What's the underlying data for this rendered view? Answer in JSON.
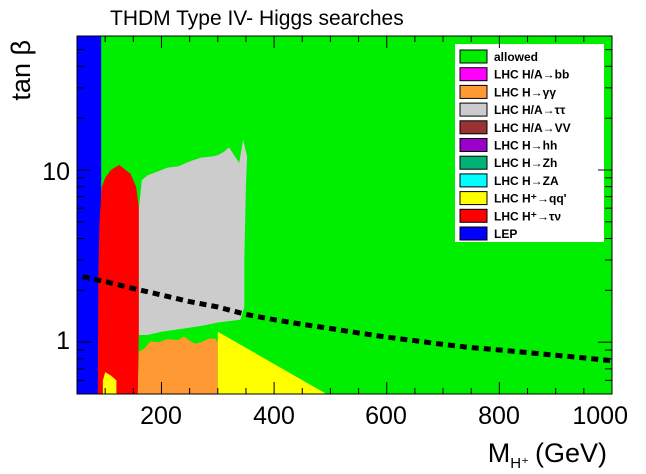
{
  "chart_data": {
    "type": "area",
    "title": "THDM Type IV- Higgs searches",
    "xlabel": "M",
    "xlabel_sub": "H⁺",
    "xlabel_unit": "(GeV)",
    "ylabel": "tan β",
    "x_scale": "linear",
    "y_scale": "log",
    "xlim": [
      50,
      1000
    ],
    "ylim": [
      0.5,
      60
    ],
    "x_ticks": [
      200,
      400,
      600,
      800,
      1000
    ],
    "x_tick_labels": [
      "200",
      "400",
      "600",
      "800",
      "1000"
    ],
    "y_ticks": [
      1,
      10
    ],
    "y_tick_labels": [
      "1",
      "10"
    ],
    "grid": false,
    "legend_position": "top-right",
    "legend": [
      {
        "key": "allowed",
        "label": "allowed",
        "color": "#00ee00"
      },
      {
        "key": "hbb",
        "label": "LHC H/A→bb",
        "color": "#ff00ff"
      },
      {
        "key": "hgg",
        "label": "LHC H→γγ",
        "color": "#ff9933"
      },
      {
        "key": "htt",
        "label": "LHC H/A→ττ",
        "color": "#cccccc"
      },
      {
        "key": "hvv",
        "label": "LHC H/A→VV",
        "color": "#993333"
      },
      {
        "key": "hhh",
        "label": "LHC H→hh",
        "color": "#9900cc"
      },
      {
        "key": "hzh",
        "label": "LHC H→Zh",
        "color": "#00b377"
      },
      {
        "key": "hza",
        "label": "LHC H→ZA",
        "color": "#00ffff"
      },
      {
        "key": "hqq",
        "label": "LHC H⁺→qq'",
        "color": "#ffff00"
      },
      {
        "key": "htn",
        "label": "LHC H⁺→τν",
        "color": "#ff0000"
      },
      {
        "key": "lep",
        "label": "LEP",
        "color": "#0000ff"
      }
    ],
    "regions": [
      {
        "key": "lep",
        "points": [
          [
            50,
            0.5
          ],
          [
            93,
            0.5
          ],
          [
            93,
            60
          ],
          [
            50,
            60
          ]
        ]
      },
      {
        "key": "htn",
        "points": [
          [
            87,
            0.5
          ],
          [
            158,
            0.5
          ],
          [
            160,
            1.2
          ],
          [
            160,
            6
          ],
          [
            155,
            8
          ],
          [
            145,
            9.5
          ],
          [
            125,
            10.7
          ],
          [
            110,
            10
          ],
          [
            100,
            9
          ],
          [
            94,
            8
          ],
          [
            90,
            5
          ],
          [
            88,
            2.5
          ]
        ]
      },
      {
        "key": "htt",
        "points": [
          [
            160,
            1.1
          ],
          [
            175,
            1.1
          ],
          [
            200,
            1.15
          ],
          [
            240,
            1.2
          ],
          [
            275,
            1.25
          ],
          [
            300,
            1.3
          ],
          [
            340,
            1.35
          ],
          [
            347,
            1.6
          ],
          [
            347,
            3
          ],
          [
            350,
            8
          ],
          [
            352,
            12
          ],
          [
            345,
            15
          ],
          [
            338,
            11
          ],
          [
            320,
            13.5
          ],
          [
            310,
            12.7
          ],
          [
            300,
            12.2
          ],
          [
            290,
            12
          ],
          [
            270,
            11.8
          ],
          [
            250,
            11.2
          ],
          [
            230,
            10.5
          ],
          [
            210,
            10.3
          ],
          [
            190,
            9.7
          ],
          [
            175,
            9.3
          ],
          [
            165,
            8.7
          ],
          [
            160,
            6
          ]
        ]
      },
      {
        "key": "hgg",
        "points": [
          [
            158,
            0.5
          ],
          [
            300,
            0.5
          ],
          [
            300,
            1.0
          ],
          [
            295,
            1.05
          ],
          [
            285,
            1.05
          ],
          [
            270,
            1.0
          ],
          [
            260,
            0.98
          ],
          [
            250,
            1.02
          ],
          [
            240,
            1.08
          ],
          [
            230,
            1.03
          ],
          [
            210,
            1.04
          ],
          [
            195,
            1.0
          ],
          [
            180,
            1.01
          ],
          [
            170,
            0.92
          ],
          [
            160,
            0.88
          ]
        ]
      },
      {
        "key": "hqq",
        "points": [
          [
            300,
            1.15
          ],
          [
            493,
            0.5
          ],
          [
            300,
            0.5
          ]
        ]
      },
      {
        "key": "hqq",
        "points": [
          [
            96,
            0.5
          ],
          [
            120,
            0.5
          ],
          [
            120,
            0.6
          ],
          [
            110,
            0.64
          ],
          [
            100,
            0.67
          ],
          [
            96,
            0.6
          ]
        ]
      }
    ],
    "reference_curve": {
      "style": "dashed",
      "color": "#000000",
      "x": [
        60,
        100,
        150,
        200,
        250,
        300,
        350,
        400,
        450,
        500,
        550,
        600,
        650,
        700,
        750,
        800,
        850,
        900,
        950,
        1000
      ],
      "y": [
        2.4,
        2.25,
        2.05,
        1.88,
        1.72,
        1.6,
        1.45,
        1.35,
        1.27,
        1.2,
        1.13,
        1.07,
        1.02,
        0.97,
        0.93,
        0.9,
        0.87,
        0.84,
        0.81,
        0.78
      ]
    }
  }
}
